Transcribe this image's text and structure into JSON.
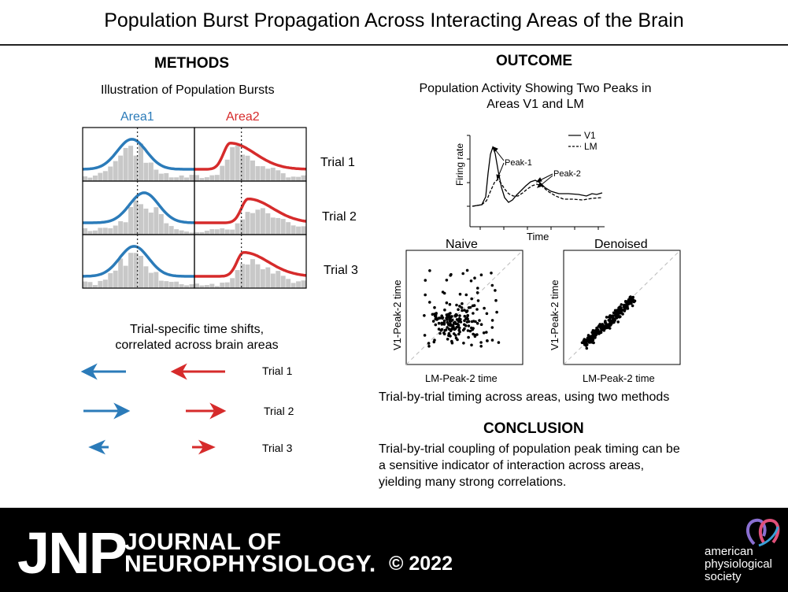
{
  "title": "Population Burst Propagation Across Interacting Areas of the Brain",
  "methods": {
    "heading": "METHODS",
    "subtitle": "Illustration of Population Bursts",
    "area1_label": "Area1",
    "area2_label": "Area2",
    "trials": [
      "Trial 1",
      "Trial 2",
      "Trial 3"
    ],
    "shift_caption_line1": "Trial-specific time shifts,",
    "shift_caption_line2": "correlated across brain areas",
    "arrow_trials": [
      "Trial 1",
      "Trial 2",
      "Trial 3"
    ]
  },
  "outcome": {
    "heading": "OUTCOME",
    "subtitle_line1": "Population Activity Showing Two Peaks in",
    "subtitle_line2": "Areas V1 and LM",
    "firing_plot": {
      "ylabel": "Firing rate",
      "xlabel": "Time",
      "legend": [
        "V1",
        "LM"
      ],
      "annotations": [
        "Peak-1",
        "Peak-2"
      ]
    },
    "naive": {
      "title": "Naive",
      "xlabel": "LM-Peak-2 time",
      "ylabel": "V1-Peak-2 time"
    },
    "denoised": {
      "title": "Denoised",
      "xlabel": "LM-Peak-2 time",
      "ylabel": "V1-Peak-2 time"
    },
    "caption": "Trial-by-trial timing across areas, using two methods"
  },
  "conclusion": {
    "heading": "CONCLUSION",
    "line1": "Trial-by-trial coupling of population peak timing can be",
    "line2": "a sensitive indicator of interaction across areas,",
    "line3": "yielding many strong correlations."
  },
  "footer": {
    "journal_abbrev": "JNP",
    "journal_line1": "JOURNAL OF",
    "journal_line2": "NEUROPHYSIOLOGY.",
    "copyright": "© 2022",
    "society_line1": "american",
    "society_line2": "physiological",
    "society_line3": "society"
  },
  "colors": {
    "area1": "#2b7bb9",
    "area2": "#d62b2b",
    "histogram": "#c8c8c8",
    "footer_bg": "#000000"
  }
}
